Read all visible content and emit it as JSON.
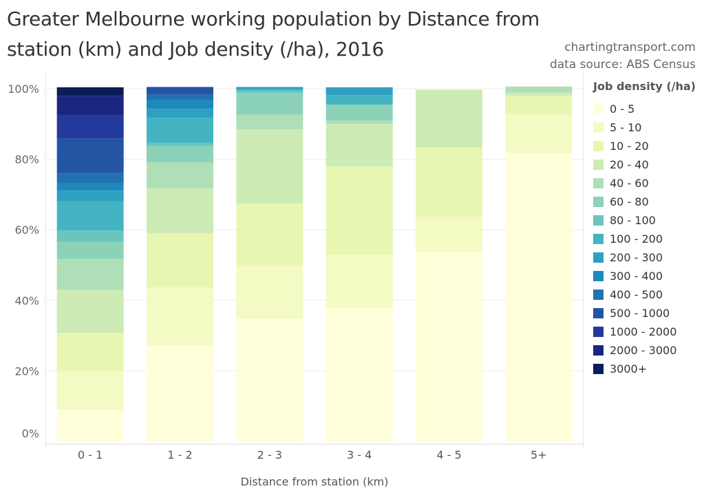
{
  "title": "Greater Melbourne working population by Distance from station (km) and Job density (/ha), 2016",
  "source_lines": [
    "chartingtransport.com",
    "data source: ABS Census"
  ],
  "chart_data": {
    "type": "bar",
    "stacked": true,
    "normalized": true,
    "xlabel": "Distance from station (km)",
    "ylabel": "",
    "ylim": [
      0,
      100
    ],
    "yticks": [
      "0%",
      "20%",
      "40%",
      "60%",
      "80%",
      "100%"
    ],
    "categories": [
      "0 - 1",
      "1 - 2",
      "2 - 3",
      "3 - 4",
      "4 - 5",
      "5+"
    ],
    "legend_title": "Job density (/ha)",
    "legend_position": "right",
    "series": [
      {
        "name": "0 - 5",
        "color": "#ffffd9",
        "values": [
          9.0,
          27.2,
          34.8,
          37.8,
          53.7,
          81.8
        ]
      },
      {
        "name": "5 - 10",
        "color": "#f3fac3",
        "values": [
          11.0,
          16.5,
          15.0,
          15.2,
          10.0,
          11.0
        ]
      },
      {
        "name": "10 - 20",
        "color": "#e7f6b1",
        "values": [
          10.8,
          15.3,
          17.7,
          25.0,
          19.7,
          5.2
        ]
      },
      {
        "name": "20 - 40",
        "color": "#cdebb4",
        "values": [
          12.2,
          12.8,
          21.0,
          12.0,
          16.3,
          0.9
        ]
      },
      {
        "name": "40 - 60",
        "color": "#afdfb6",
        "values": [
          8.7,
          7.3,
          4.2,
          1.0,
          0.0,
          1.7
        ]
      },
      {
        "name": "60 - 80",
        "color": "#8bd2b9",
        "values": [
          4.9,
          4.6,
          6.1,
          4.5,
          0.0,
          0.0
        ]
      },
      {
        "name": "80 - 100",
        "color": "#69c5be",
        "values": [
          3.2,
          1.0,
          0.7,
          0.0,
          0.0,
          0.0
        ]
      },
      {
        "name": "100 - 200",
        "color": "#45b4c2",
        "values": [
          8.3,
          7.1,
          0.4,
          2.7,
          0.0,
          0.0
        ]
      },
      {
        "name": "200 - 300",
        "color": "#2ea0c0",
        "values": [
          3.0,
          2.5,
          0.6,
          2.2,
          0.0,
          0.0
        ]
      },
      {
        "name": "300 - 400",
        "color": "#1d8abd",
        "values": [
          2.2,
          2.5,
          0.0,
          0.0,
          0.0,
          0.0
        ]
      },
      {
        "name": "400 - 500",
        "color": "#2072b1",
        "values": [
          2.8,
          1.5,
          0.0,
          0.0,
          0.0,
          0.0
        ]
      },
      {
        "name": "500 - 1000",
        "color": "#2355a4",
        "values": [
          9.8,
          2.2,
          0.0,
          0.0,
          0.0,
          0.0
        ]
      },
      {
        "name": "1000 - 2000",
        "color": "#24399c",
        "values": [
          6.7,
          0.0,
          0.0,
          0.0,
          0.0,
          0.0
        ]
      },
      {
        "name": "2000 - 3000",
        "color": "#1a2680",
        "values": [
          5.4,
          0.0,
          0.0,
          0.0,
          0.0,
          0.0
        ]
      },
      {
        "name": "3000+",
        "color": "#0b1d57",
        "values": [
          2.4,
          0.0,
          0.0,
          0.0,
          0.0,
          0.0
        ]
      }
    ]
  }
}
